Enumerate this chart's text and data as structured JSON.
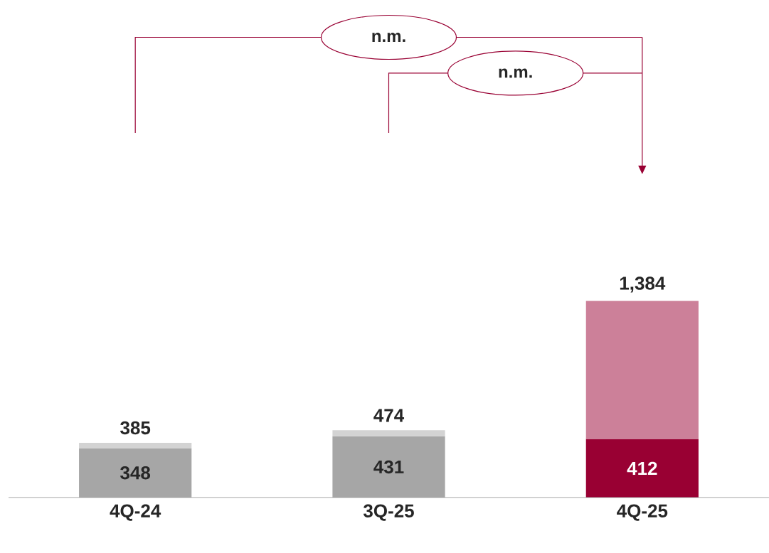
{
  "chart_data": {
    "type": "bar",
    "stacked": true,
    "categories": [
      "4Q-24",
      "3Q-25",
      "4Q-25"
    ],
    "series": [
      {
        "colors": [
          "#a6a6a6",
          "#a6a6a6",
          "#990033"
        ],
        "values": [
          348,
          431,
          412
        ],
        "value_labels": [
          "348",
          "431",
          "412"
        ]
      },
      {
        "colors": [
          "#d3d3d3",
          "#d3d3d3",
          "#cc8099"
        ],
        "values": [
          37,
          43,
          972
        ]
      }
    ],
    "totals": [
      "385",
      "474",
      "1,384"
    ],
    "annotations": [
      "n.m.",
      "n.m."
    ]
  }
}
